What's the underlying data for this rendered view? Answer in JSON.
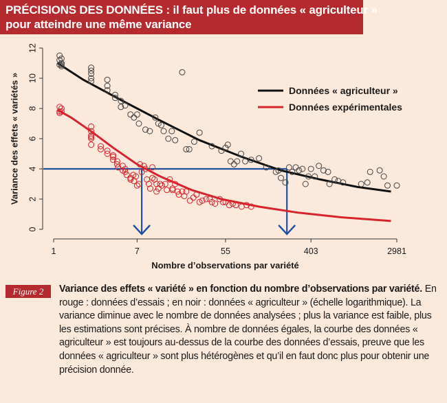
{
  "header": {
    "title_line1": "PRÉCISIONS DES DONNÉES : il faut plus de données « agriculteur »",
    "title_line2": "pour atteindre une même variance"
  },
  "figure": {
    "badge": "Figure 2",
    "caption_bold": "Variance des effets « variété » en fonction du nombre d’observations par variété.",
    "caption_text": " En rouge : données d’essais ; en noir : données « agriculteur » (échelle logarithmique). La variance diminue avec le nombre de données analysées ; plus la variance est faible, plus les estimations sont précises. À nombre de données égales, la courbe des données « agriculteur » est toujours au-dessus de la courbe des données d’essais, preuve que les données « agriculteur » sont plus hétérogènes et qu’il en faut donc plus pour obtenir une précision donnée."
  },
  "colors": {
    "agri": "#111111",
    "exp": "#d7232b",
    "guide": "#1f4fa0",
    "header": "#b52a2e"
  },
  "chart_data": {
    "type": "scatter",
    "xlabel": "Nombre d’observations par variété",
    "ylabel": "Variance des effets « variétés »",
    "x_scale": "log",
    "x_ticks": [
      1,
      7,
      55,
      403,
      2981
    ],
    "x_tick_labels": [
      "1",
      "7",
      "55",
      "403",
      "2981"
    ],
    "xlim": [
      1,
      2981
    ],
    "y_ticks": [
      0,
      2,
      4,
      6,
      8,
      10,
      12
    ],
    "y_tick_labels": [
      "0",
      "2",
      "4",
      "6",
      "8",
      "10",
      "12"
    ],
    "ylim": [
      0,
      12
    ],
    "legend_position": "top-right",
    "reference_line": {
      "y": 4,
      "x_marks": [
        7.8,
        230
      ]
    },
    "series": [
      {
        "name": "Données « agriculteur »",
        "color": "#111111",
        "fit": {
          "x": [
            1.1,
            2,
            5,
            12,
            30,
            80,
            200,
            500,
            1200,
            2600
          ],
          "y": [
            11.0,
            9.9,
            8.5,
            7.2,
            5.9,
            4.8,
            3.9,
            3.3,
            2.8,
            2.5
          ]
        },
        "points": {
          "x": [
            1.15,
            1.15,
            1.15,
            1.2,
            1.2,
            1.2,
            1.2,
            2.4,
            2.4,
            2.4,
            2.4,
            2.4,
            3.5,
            3.5,
            3.5,
            4.2,
            4.2,
            4.8,
            4.8,
            5.3,
            6,
            6.5,
            7,
            7.3,
            8.5,
            9.4,
            10.7,
            11.5,
            12.3,
            13,
            14.5,
            15.7,
            17,
            20,
            22,
            23.6,
            26.5,
            30,
            40,
            50,
            55,
            58,
            62,
            67,
            72,
            79,
            87,
            100,
            120,
            142,
            178,
            189,
            200,
            222,
            242,
            260,
            283,
            305,
            330,
            355,
            380,
            403,
            440,
            485,
            540,
            600,
            620,
            700,
            760,
            850,
            1300,
            1500,
            1600,
            2000,
            2200,
            2400,
            2981
          ],
          "y": [
            11.5,
            11.2,
            10.9,
            11.0,
            10.8,
            11.3,
            10.9,
            10.7,
            10.3,
            10.0,
            9.8,
            10.5,
            9.9,
            9.2,
            9.5,
            8.7,
            8.9,
            8.5,
            8.1,
            8.2,
            7.6,
            7.4,
            7.6,
            7.0,
            6.6,
            6.5,
            7.4,
            7.0,
            6.9,
            6.5,
            6.0,
            6.5,
            5.9,
            10.4,
            5.3,
            5.3,
            5.8,
            6.4,
            5.5,
            5.2,
            5.4,
            5.6,
            4.5,
            4.3,
            4.5,
            5.0,
            4.5,
            4.6,
            4.7,
            4.1,
            3.8,
            3.9,
            3.4,
            3.1,
            4.1,
            3.8,
            4.1,
            3.9,
            4.0,
            3.0,
            3.5,
            4.0,
            3.5,
            4.2,
            3.9,
            3.8,
            3.0,
            3.3,
            3.2,
            3.1,
            3.0,
            3.1,
            3.8,
            3.9,
            3.5,
            2.9,
            2.9
          ]
        }
      },
      {
        "name": "Données expérimentales",
        "color": "#d7232b",
        "fit": {
          "x": [
            1.1,
            1.5,
            2.5,
            4,
            7,
            12,
            25,
            50,
            120,
            300,
            800,
            2600
          ],
          "y": [
            7.9,
            7.4,
            6.4,
            5.4,
            4.3,
            3.5,
            2.6,
            2.0,
            1.5,
            1.1,
            0.8,
            0.55
          ]
        },
        "points": {
          "x": [
            1.15,
            1.15,
            1.15,
            1.2,
            1.2,
            2.4,
            2.4,
            2.4,
            2.4,
            2.4,
            2.4,
            3,
            3,
            3.5,
            3.5,
            4,
            4,
            4,
            4.4,
            4.4,
            4.5,
            5,
            5,
            5.3,
            5.3,
            5.5,
            6,
            6,
            6.4,
            6.5,
            6.8,
            7,
            7.3,
            7.5,
            7.8,
            8.2,
            8.5,
            8.8,
            9.2,
            9.5,
            10,
            10,
            10.5,
            11,
            11,
            11.5,
            12,
            12.5,
            13.5,
            14,
            15,
            16,
            16,
            17,
            18,
            18.5,
            20,
            21,
            22,
            24,
            26,
            28,
            30,
            32,
            35,
            38,
            40,
            43,
            48,
            52,
            55,
            60,
            65,
            70,
            80,
            90,
            100
          ],
          "y": [
            8.1,
            7.8,
            7.7,
            7.8,
            8.0,
            6.8,
            6.5,
            6.1,
            6.2,
            6.0,
            5.6,
            5.5,
            5.3,
            5.0,
            5.2,
            4.8,
            4.6,
            4.9,
            4.5,
            4.3,
            4.1,
            4.2,
            3.9,
            4.0,
            3.8,
            3.6,
            3.4,
            3.3,
            3.6,
            3.2,
            3.5,
            2.9,
            3.0,
            4.3,
            3.8,
            4.2,
            4.0,
            3.3,
            3.0,
            2.7,
            4.1,
            3.4,
            3.3,
            3.0,
            2.5,
            2.7,
            3.0,
            2.9,
            3.0,
            2.6,
            3.3,
            2.7,
            2.6,
            3.0,
            2.5,
            2.3,
            2.5,
            2.2,
            2.5,
            1.9,
            2.1,
            2.3,
            1.8,
            1.9,
            2.0,
            2.0,
            1.8,
            1.7,
            2.0,
            1.8,
            1.8,
            1.6,
            1.7,
            1.6,
            1.5,
            1.6,
            1.5
          ]
        }
      }
    ]
  }
}
